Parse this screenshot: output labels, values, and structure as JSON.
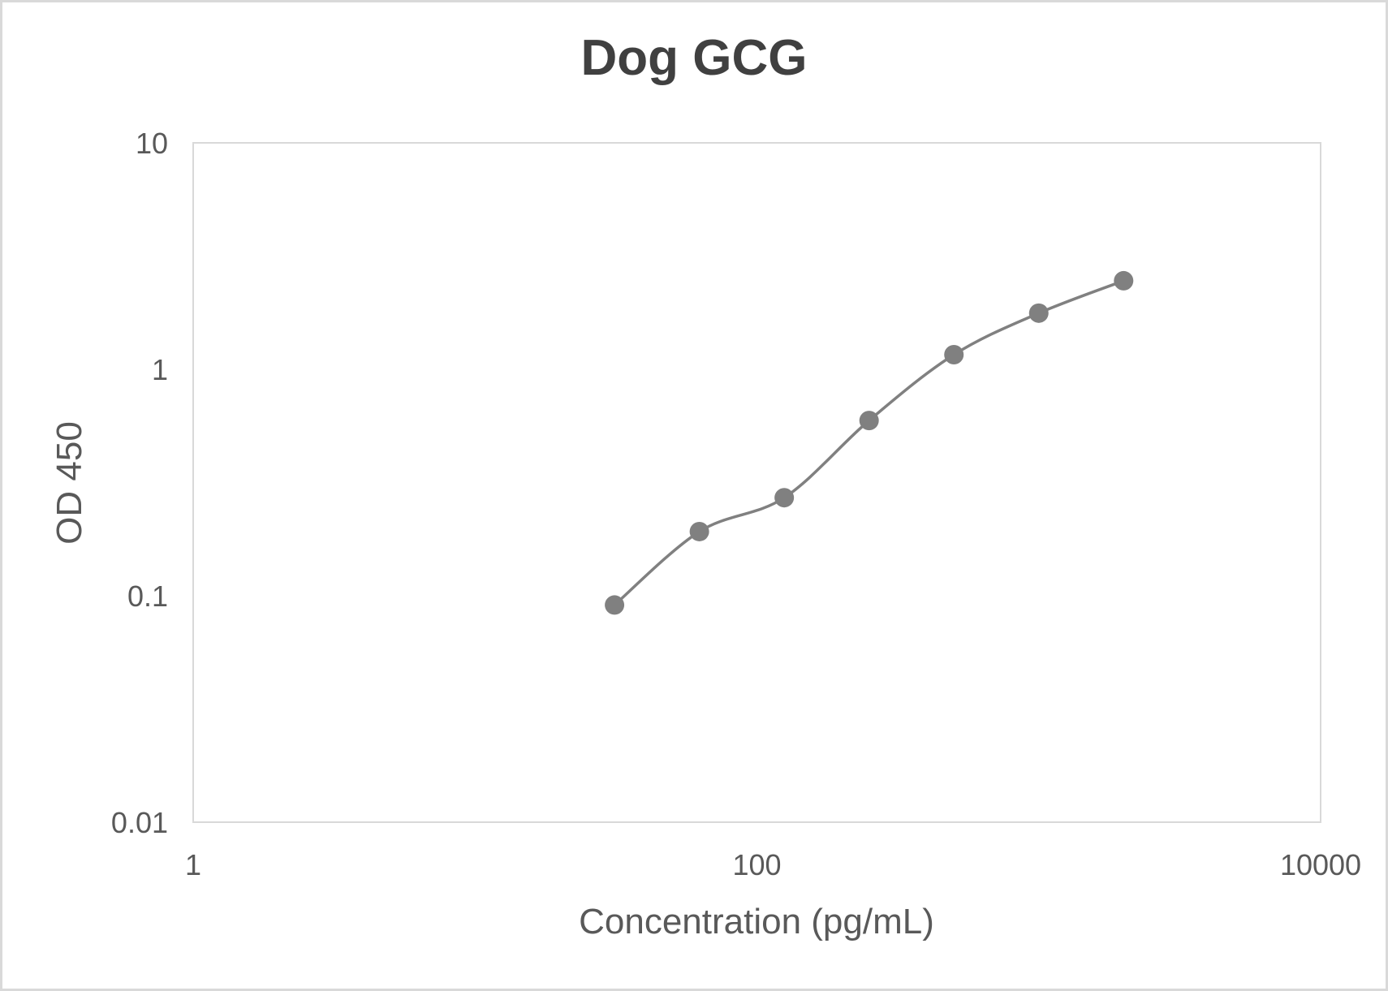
{
  "chart_data": {
    "type": "line",
    "title": "Dog GCG",
    "xlabel": "Concentration (pg/mL)",
    "ylabel": "OD 450",
    "xscale": "log",
    "yscale": "log",
    "xlim": [
      1,
      10000
    ],
    "ylim": [
      0.01,
      10
    ],
    "x_ticks": [
      "1",
      "100",
      "10000"
    ],
    "y_ticks": [
      "10",
      "1",
      "0.1",
      "0.01"
    ],
    "grid": false,
    "legend": null,
    "series": [
      {
        "name": "Dog GCG",
        "color": "#808080",
        "marker": "circle",
        "smooth": true,
        "x": [
          31.25,
          62.5,
          125,
          250,
          500,
          1000,
          2000
        ],
        "values": [
          0.091,
          0.192,
          0.271,
          0.594,
          1.16,
          1.77,
          2.46
        ]
      }
    ]
  },
  "colors": {
    "series": "#808080",
    "plot_border": "#d9d9d9",
    "title": "#404040",
    "text": "#595959"
  }
}
